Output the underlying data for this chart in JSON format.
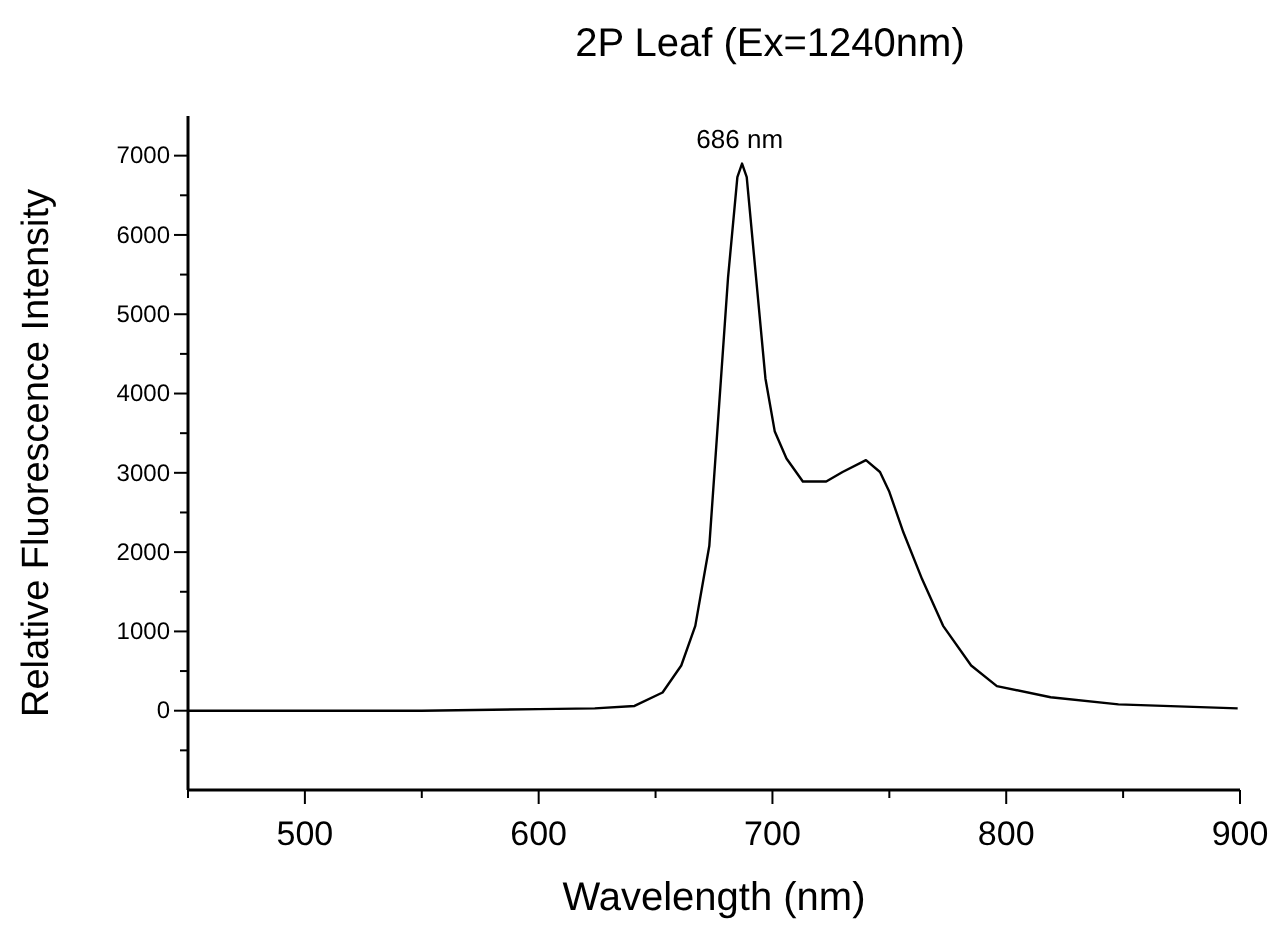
{
  "chart_data": {
    "type": "line",
    "title": "2P Leaf (Ex=1240nm)",
    "xlabel": "Wavelength (nm)",
    "ylabel": "Relative Fluorescence Intensity",
    "x": [
      450,
      500,
      550,
      600,
      624,
      641,
      653,
      661,
      667,
      673,
      677,
      681,
      685,
      687,
      689,
      693,
      697,
      701,
      706,
      713,
      723,
      730,
      740,
      746,
      750,
      756,
      764,
      773,
      785,
      796,
      819,
      848,
      899
    ],
    "series": [
      {
        "color": "#000000",
        "values": [
          0,
          0,
          0,
          20,
          30,
          60,
          230,
          570,
          1070,
          2080,
          3770,
          5460,
          6730,
          6900,
          6730,
          5460,
          4190,
          3520,
          3180,
          2890,
          2890,
          3010,
          3160,
          3010,
          2760,
          2250,
          1660,
          1070,
          570,
          310,
          170,
          80,
          30
        ]
      }
    ],
    "xlim": [
      450,
      900
    ],
    "xticks": [
      {
        "value": 450,
        "label": null
      },
      500,
      {
        "value": 550,
        "label": null
      },
      600,
      {
        "value": 650,
        "label": null
      },
      700,
      {
        "value": 750,
        "label": null
      },
      800,
      {
        "value": 850,
        "label": null
      },
      900
    ],
    "ylim": [
      -1000,
      7500
    ],
    "yticks": [
      {
        "value": -500,
        "label": null
      },
      0,
      {
        "value": 500,
        "label": null
      },
      1000,
      {
        "value": 1500,
        "label": null
      },
      2000,
      {
        "value": 2500,
        "label": null
      },
      3000,
      {
        "value": 3500,
        "label": null
      },
      4000,
      {
        "value": 4500,
        "label": null
      },
      5000,
      {
        "value": 5500,
        "label": null
      },
      6000,
      {
        "value": 6500,
        "label": null
      },
      7000
    ],
    "annotations": [
      {
        "text": "686 nm",
        "x": 686,
        "y": 6900
      }
    ],
    "grid": false,
    "marker": "none",
    "line_style": "solid"
  }
}
